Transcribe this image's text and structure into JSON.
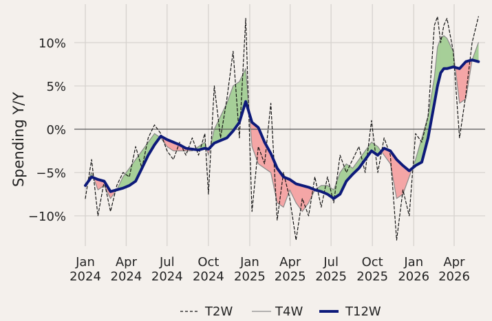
{
  "chart_data": {
    "type": "line",
    "ylabel": "Spending Y/Y",
    "xlabel": "",
    "title": "",
    "ylim": [
      -13.6,
      13.6
    ],
    "yticks": [
      {
        "v": -10,
        "label": "−10%"
      },
      {
        "v": -5,
        "label": "−5%"
      },
      {
        "v": 0,
        "label": "0%"
      },
      {
        "v": 5,
        "label": "5%"
      },
      {
        "v": 10,
        "label": "10%"
      }
    ],
    "xticks": [
      {
        "date": "2024-01-01",
        "month": "Jan",
        "year": "2024"
      },
      {
        "date": "2024-04-01",
        "month": "Apr",
        "year": "2024"
      },
      {
        "date": "2024-07-01",
        "month": "Jul",
        "year": "2024"
      },
      {
        "date": "2024-10-01",
        "month": "Oct",
        "year": "2024"
      },
      {
        "date": "2025-01-01",
        "month": "Jan",
        "year": "2025"
      },
      {
        "date": "2025-04-01",
        "month": "Apr",
        "year": "2025"
      },
      {
        "date": "2025-07-01",
        "month": "Jul",
        "year": "2025"
      },
      {
        "date": "2025-10-01",
        "month": "Oct",
        "year": "2025"
      },
      {
        "date": "2026-01-01",
        "month": "Jan",
        "year": "2026"
      },
      {
        "date": "2026-04-01",
        "month": "Apr",
        "year": "2026"
      }
    ],
    "grid": true,
    "legend": "bottom",
    "fill": {
      "above": "#a6cf98",
      "below": "#f4a6a6",
      "note": "shaded between T4W and T12W"
    },
    "series": [
      {
        "name": "T2W",
        "style": "dashed",
        "color": "#111111",
        "points": [
          [
            "2024-01-01",
            -8.0
          ],
          [
            "2024-01-15",
            -3.5
          ],
          [
            "2024-01-29",
            -10.0
          ],
          [
            "2024-02-12",
            -6.0
          ],
          [
            "2024-02-26",
            -9.5
          ],
          [
            "2024-03-11",
            -6.5
          ],
          [
            "2024-03-25",
            -5.0
          ],
          [
            "2024-04-08",
            -5.5
          ],
          [
            "2024-04-22",
            -2.0
          ],
          [
            "2024-05-06",
            -4.5
          ],
          [
            "2024-05-20",
            -1.0
          ],
          [
            "2024-06-03",
            0.5
          ],
          [
            "2024-06-17",
            -0.5
          ],
          [
            "2024-07-01",
            -2.5
          ],
          [
            "2024-07-15",
            -3.5
          ],
          [
            "2024-07-29",
            -1.5
          ],
          [
            "2024-08-12",
            -3.0
          ],
          [
            "2024-08-26",
            -1.0
          ],
          [
            "2024-09-09",
            -3.0
          ],
          [
            "2024-09-23",
            -0.5
          ],
          [
            "2024-10-01",
            -7.5
          ],
          [
            "2024-10-14",
            5.0
          ],
          [
            "2024-10-28",
            -1.0
          ],
          [
            "2024-11-11",
            3.5
          ],
          [
            "2024-11-25",
            9.0
          ],
          [
            "2024-12-09",
            -1.0
          ],
          [
            "2024-12-23",
            12.8
          ],
          [
            "2025-01-06",
            -9.5
          ],
          [
            "2025-01-20",
            -2.0
          ],
          [
            "2025-02-03",
            -4.0
          ],
          [
            "2025-02-17",
            3.0
          ],
          [
            "2025-03-03",
            -10.5
          ],
          [
            "2025-03-17",
            -5.0
          ],
          [
            "2025-03-31",
            -8.0
          ],
          [
            "2025-04-14",
            -12.8
          ],
          [
            "2025-04-28",
            -8.0
          ],
          [
            "2025-05-12",
            -10.0
          ],
          [
            "2025-05-26",
            -5.5
          ],
          [
            "2025-06-09",
            -9.0
          ],
          [
            "2025-06-23",
            -5.5
          ],
          [
            "2025-07-07",
            -8.5
          ],
          [
            "2025-07-21",
            -3.0
          ],
          [
            "2025-08-04",
            -5.0
          ],
          [
            "2025-08-18",
            -3.5
          ],
          [
            "2025-09-01",
            -2.0
          ],
          [
            "2025-09-15",
            -5.0
          ],
          [
            "2025-09-29",
            1.0
          ],
          [
            "2025-10-13",
            -5.0
          ],
          [
            "2025-10-27",
            -1.0
          ],
          [
            "2025-11-10",
            -3.0
          ],
          [
            "2025-11-24",
            -12.8
          ],
          [
            "2025-12-08",
            -7.0
          ],
          [
            "2025-12-22",
            -10.0
          ],
          [
            "2026-01-05",
            -0.5
          ],
          [
            "2026-01-19",
            -1.5
          ],
          [
            "2026-02-02",
            1.5
          ],
          [
            "2026-02-16",
            12.0
          ],
          [
            "2026-02-23",
            13.0
          ],
          [
            "2026-03-02",
            10.0
          ],
          [
            "2026-03-09",
            12.0
          ],
          [
            "2026-03-16",
            12.8
          ],
          [
            "2026-03-30",
            9.0
          ],
          [
            "2026-04-13",
            -1.0
          ],
          [
            "2026-04-27",
            4.0
          ],
          [
            "2026-05-11",
            10.0
          ],
          [
            "2026-05-25",
            13.0
          ]
        ]
      },
      {
        "name": "T4W",
        "style": "solid-thin",
        "color": "#8a8a8a",
        "points": [
          [
            "2024-01-01",
            -6.5
          ],
          [
            "2024-01-15",
            -5.0
          ],
          [
            "2024-01-29",
            -7.0
          ],
          [
            "2024-02-12",
            -6.5
          ],
          [
            "2024-02-26",
            -8.0
          ],
          [
            "2024-03-11",
            -7.0
          ],
          [
            "2024-03-25",
            -5.5
          ],
          [
            "2024-04-08",
            -4.5
          ],
          [
            "2024-04-22",
            -3.5
          ],
          [
            "2024-05-06",
            -2.5
          ],
          [
            "2024-05-20",
            -1.5
          ],
          [
            "2024-06-03",
            -0.5
          ],
          [
            "2024-06-17",
            -1.0
          ],
          [
            "2024-07-01",
            -2.0
          ],
          [
            "2024-07-15",
            -2.5
          ],
          [
            "2024-07-29",
            -2.5
          ],
          [
            "2024-08-12",
            -2.5
          ],
          [
            "2024-08-26",
            -2.5
          ],
          [
            "2024-09-09",
            -2.0
          ],
          [
            "2024-09-23",
            -1.5
          ],
          [
            "2024-10-01",
            -3.0
          ],
          [
            "2024-10-14",
            0.0
          ],
          [
            "2024-10-28",
            1.5
          ],
          [
            "2024-11-11",
            3.0
          ],
          [
            "2024-11-25",
            5.0
          ],
          [
            "2024-12-09",
            5.5
          ],
          [
            "2024-12-23",
            7.0
          ],
          [
            "2025-01-06",
            -2.0
          ],
          [
            "2025-01-20",
            -4.0
          ],
          [
            "2025-02-03",
            -4.5
          ],
          [
            "2025-02-17",
            -5.0
          ],
          [
            "2025-03-03",
            -8.5
          ],
          [
            "2025-03-17",
            -9.0
          ],
          [
            "2025-03-31",
            -7.0
          ],
          [
            "2025-04-14",
            -8.5
          ],
          [
            "2025-04-28",
            -9.5
          ],
          [
            "2025-05-12",
            -8.5
          ],
          [
            "2025-05-26",
            -7.0
          ],
          [
            "2025-06-09",
            -6.5
          ],
          [
            "2025-06-23",
            -6.5
          ],
          [
            "2025-07-07",
            -7.0
          ],
          [
            "2025-07-21",
            -5.0
          ],
          [
            "2025-08-04",
            -4.0
          ],
          [
            "2025-08-18",
            -4.5
          ],
          [
            "2025-09-01",
            -3.5
          ],
          [
            "2025-09-15",
            -2.5
          ],
          [
            "2025-09-29",
            -1.5
          ],
          [
            "2025-10-13",
            -2.0
          ],
          [
            "2025-10-27",
            -3.0
          ],
          [
            "2025-11-10",
            -4.0
          ],
          [
            "2025-11-24",
            -8.0
          ],
          [
            "2025-12-08",
            -7.5
          ],
          [
            "2025-12-22",
            -5.5
          ],
          [
            "2026-01-05",
            -3.5
          ],
          [
            "2026-01-19",
            -1.0
          ],
          [
            "2026-02-02",
            1.5
          ],
          [
            "2026-02-16",
            6.0
          ],
          [
            "2026-02-23",
            9.5
          ],
          [
            "2026-03-02",
            10.5
          ],
          [
            "2026-03-09",
            10.8
          ],
          [
            "2026-03-16",
            10.5
          ],
          [
            "2026-03-30",
            9.0
          ],
          [
            "2026-04-13",
            3.0
          ],
          [
            "2026-04-27",
            3.5
          ],
          [
            "2026-05-11",
            8.0
          ],
          [
            "2026-05-25",
            10.0
          ]
        ]
      },
      {
        "name": "T12W",
        "style": "solid-thick",
        "color": "#0d1a7a",
        "points": [
          [
            "2024-01-01",
            -6.5
          ],
          [
            "2024-01-15",
            -5.5
          ],
          [
            "2024-01-29",
            -5.8
          ],
          [
            "2024-02-12",
            -6.0
          ],
          [
            "2024-02-26",
            -7.2
          ],
          [
            "2024-03-11",
            -7.0
          ],
          [
            "2024-03-25",
            -6.8
          ],
          [
            "2024-04-08",
            -6.5
          ],
          [
            "2024-04-22",
            -6.0
          ],
          [
            "2024-05-06",
            -4.5
          ],
          [
            "2024-05-20",
            -3.0
          ],
          [
            "2024-06-03",
            -1.8
          ],
          [
            "2024-06-17",
            -0.8
          ],
          [
            "2024-07-01",
            -1.2
          ],
          [
            "2024-07-15",
            -1.5
          ],
          [
            "2024-07-29",
            -1.8
          ],
          [
            "2024-08-12",
            -2.2
          ],
          [
            "2024-08-26",
            -2.3
          ],
          [
            "2024-09-09",
            -2.4
          ],
          [
            "2024-09-23",
            -2.2
          ],
          [
            "2024-10-01",
            -2.3
          ],
          [
            "2024-10-14",
            -1.6
          ],
          [
            "2024-10-28",
            -1.3
          ],
          [
            "2024-11-11",
            -1.0
          ],
          [
            "2024-11-25",
            -0.2
          ],
          [
            "2024-12-09",
            0.8
          ],
          [
            "2024-12-23",
            3.2
          ],
          [
            "2025-01-06",
            0.8
          ],
          [
            "2025-01-20",
            0.2
          ],
          [
            "2025-02-03",
            -1.5
          ],
          [
            "2025-02-17",
            -2.8
          ],
          [
            "2025-03-03",
            -4.5
          ],
          [
            "2025-03-17",
            -5.5
          ],
          [
            "2025-03-31",
            -5.8
          ],
          [
            "2025-04-14",
            -6.3
          ],
          [
            "2025-04-28",
            -6.5
          ],
          [
            "2025-05-12",
            -6.7
          ],
          [
            "2025-05-26",
            -7.0
          ],
          [
            "2025-06-09",
            -7.2
          ],
          [
            "2025-06-23",
            -7.5
          ],
          [
            "2025-07-07",
            -8.0
          ],
          [
            "2025-07-21",
            -7.5
          ],
          [
            "2025-08-04",
            -6.0
          ],
          [
            "2025-08-18",
            -5.2
          ],
          [
            "2025-09-01",
            -4.5
          ],
          [
            "2025-09-15",
            -3.5
          ],
          [
            "2025-09-29",
            -2.5
          ],
          [
            "2025-10-13",
            -3.0
          ],
          [
            "2025-10-27",
            -2.2
          ],
          [
            "2025-11-10",
            -2.5
          ],
          [
            "2025-11-24",
            -3.5
          ],
          [
            "2025-12-08",
            -4.2
          ],
          [
            "2025-12-22",
            -4.8
          ],
          [
            "2026-01-05",
            -4.2
          ],
          [
            "2026-01-19",
            -3.8
          ],
          [
            "2026-02-02",
            -1.0
          ],
          [
            "2026-02-16",
            3.0
          ],
          [
            "2026-02-23",
            5.0
          ],
          [
            "2026-03-02",
            6.5
          ],
          [
            "2026-03-09",
            7.0
          ],
          [
            "2026-03-16",
            7.0
          ],
          [
            "2026-03-30",
            7.2
          ],
          [
            "2026-04-13",
            7.0
          ],
          [
            "2026-04-27",
            7.8
          ],
          [
            "2026-05-11",
            8.0
          ],
          [
            "2026-05-25",
            7.8
          ]
        ]
      }
    ]
  }
}
